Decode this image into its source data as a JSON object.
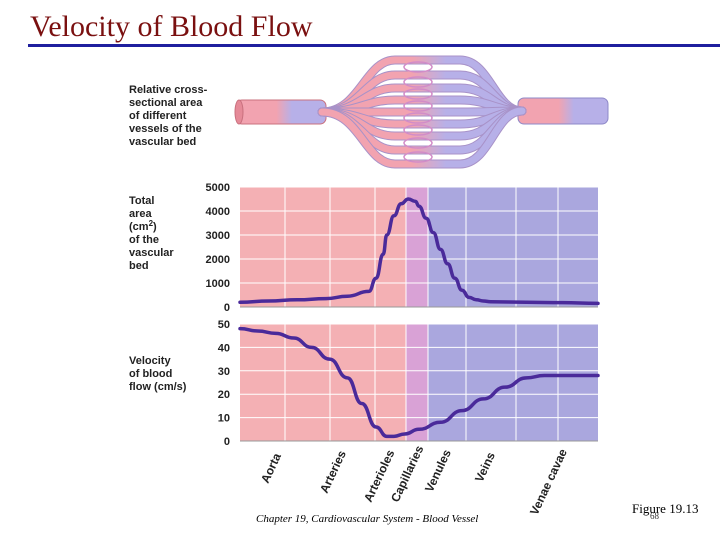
{
  "slide": {
    "title": "Velocity of Blood Flow",
    "footer": "Chapter 19, Cardiovascular System - Blood Vessel",
    "figure_ref": "Figure 19.13",
    "slide_number": "68"
  },
  "diagram": {
    "label": "Relative cross-sectional area of different vessels of the vascular bed"
  },
  "colors": {
    "arterial_bg": "#f4b0b4",
    "capillary_bg": "#d9a2d6",
    "venous_bg": "#aaa7de",
    "curve": "#4a2a9a",
    "artery_vessel": "#f2a3b0",
    "vein_vessel": "#b7b0e8",
    "title": "#7a1010",
    "title_rule": "#1f1f9e"
  },
  "chart_data": [
    {
      "type": "line",
      "title": "",
      "ylabel": "Total area (cm2) of the vascular bed",
      "ylim": [
        0,
        5000
      ],
      "yticks": [
        0,
        1000,
        2000,
        3000,
        4000,
        5000
      ],
      "ytick_labels": [
        "0",
        "1000",
        "2000",
        "3000",
        "4000",
        "5000"
      ],
      "categories": [
        "Aorta",
        "Arteries",
        "Arterioles",
        "Capillaries",
        "Venules",
        "Veins",
        "Venae cavae"
      ],
      "x": [
        0,
        0.08,
        0.16,
        0.24,
        0.3,
        0.36,
        0.38,
        0.4,
        0.41,
        0.43,
        0.45,
        0.47,
        0.49,
        0.5,
        0.52,
        0.54,
        0.56,
        0.58,
        0.6,
        0.62,
        0.64,
        0.66,
        0.68,
        0.7,
        0.8,
        0.9,
        1.0
      ],
      "series": [
        {
          "name": "Total area",
          "values": [
            200,
            250,
            300,
            350,
            450,
            650,
            1200,
            2200,
            3000,
            3800,
            4300,
            4500,
            4400,
            4200,
            3700,
            3100,
            2400,
            1800,
            1200,
            700,
            400,
            300,
            250,
            220,
            200,
            180,
            150
          ]
        }
      ]
    },
    {
      "type": "line",
      "title": "",
      "ylabel": "Velocity of blood flow (cm/s)",
      "ylim": [
        0,
        50
      ],
      "yticks": [
        0,
        10,
        20,
        30,
        40,
        50
      ],
      "ytick_labels": [
        "0",
        "10",
        "20",
        "30",
        "40",
        "50"
      ],
      "categories": [
        "Aorta",
        "Arteries",
        "Arterioles",
        "Capillaries",
        "Venules",
        "Veins",
        "Venae cavae"
      ],
      "x": [
        0,
        0.05,
        0.1,
        0.15,
        0.2,
        0.25,
        0.3,
        0.34,
        0.38,
        0.41,
        0.43,
        0.46,
        0.5,
        0.56,
        0.62,
        0.68,
        0.74,
        0.8,
        0.85,
        0.9,
        1.0
      ],
      "series": [
        {
          "name": "Velocity",
          "values": [
            48,
            47,
            46,
            44,
            40,
            35,
            27,
            16,
            6,
            2,
            2,
            3,
            5,
            8,
            13,
            18,
            23,
            27,
            28,
            28,
            28
          ]
        }
      ]
    }
  ]
}
